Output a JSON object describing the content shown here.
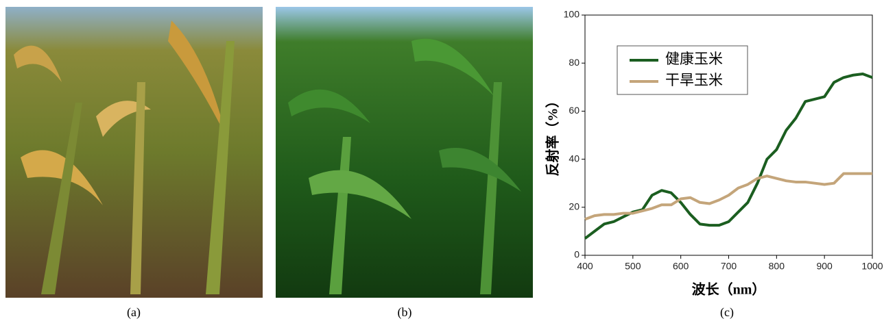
{
  "captions": [
    "(a)",
    "(b)",
    "(c)"
  ],
  "chart_data": {
    "type": "line",
    "xlabel": "波长（nm）",
    "ylabel": "反射率（%）",
    "x": [
      400,
      420,
      440,
      460,
      480,
      500,
      520,
      540,
      560,
      580,
      600,
      620,
      640,
      660,
      680,
      700,
      720,
      740,
      760,
      780,
      800,
      820,
      840,
      860,
      880,
      900,
      920,
      940,
      960,
      980,
      1000
    ],
    "series": [
      {
        "name": "健康玉米",
        "color": "#1b5e20",
        "values": [
          7,
          10,
          13,
          14,
          16,
          18,
          19,
          25,
          27,
          26,
          22,
          17,
          13,
          12.5,
          12.5,
          14,
          18,
          22,
          30,
          40,
          44,
          52,
          57,
          64,
          65,
          66,
          72,
          74,
          75,
          75.5,
          74
        ]
      },
      {
        "name": "干旱玉米",
        "color": "#c4a57a",
        "values": [
          15,
          16.5,
          17,
          17,
          17.5,
          17.5,
          18.5,
          19.5,
          21,
          21,
          23.5,
          24,
          22,
          21.5,
          23,
          25,
          28,
          29.5,
          32,
          33,
          32,
          31,
          30.5,
          30.5,
          30,
          29.5,
          30,
          34,
          34,
          34,
          34
        ]
      }
    ],
    "xlim": [
      400,
      1000
    ],
    "xticks": [
      400,
      500,
      600,
      700,
      800,
      900,
      1000
    ],
    "ylim": [
      0,
      100
    ],
    "yticks": [
      0,
      20,
      40,
      60,
      80,
      100
    ]
  }
}
